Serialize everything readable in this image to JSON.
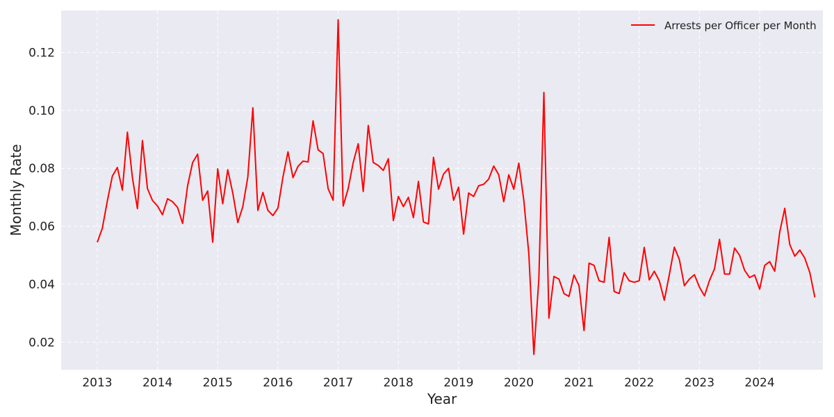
{
  "colors": {
    "line": "#ff0000",
    "plot_background": "#eaeaf2",
    "grid": "#ffffff"
  },
  "chart_data": {
    "type": "line",
    "title": "",
    "xlabel": "Year",
    "ylabel": "Monthly Rate",
    "xlim": [
      2012.4,
      2025.05
    ],
    "ylim": [
      0.0105,
      0.1345
    ],
    "xticks": [
      2013,
      2014,
      2015,
      2016,
      2017,
      2018,
      2019,
      2020,
      2021,
      2022,
      2023,
      2024
    ],
    "xtick_labels": [
      "2013",
      "2014",
      "2015",
      "2016",
      "2017",
      "2018",
      "2019",
      "2020",
      "2021",
      "2022",
      "2023",
      "2024"
    ],
    "yticks": [
      0.02,
      0.04,
      0.06,
      0.08,
      0.1,
      0.12
    ],
    "ytick_labels": [
      "0.02",
      "0.04",
      "0.06",
      "0.08",
      "0.10",
      "0.12"
    ],
    "grid": true,
    "legend_position": "top-right",
    "series": [
      {
        "name": "Arrests per Officer per Month",
        "color": "#ff0000",
        "x_start": 2013,
        "x_step_months": 1,
        "x_note": "monthly points from 2013-01 to 2024-12",
        "values": [
          0.0545,
          0.0593,
          0.0687,
          0.0773,
          0.0803,
          0.0725,
          0.0925,
          0.0768,
          0.0661,
          0.0896,
          0.073,
          0.0689,
          0.067,
          0.064,
          0.0695,
          0.0685,
          0.0665,
          0.061,
          0.074,
          0.082,
          0.0849,
          0.069,
          0.0722,
          0.0545,
          0.0798,
          0.0678,
          0.0795,
          0.0715,
          0.0613,
          0.0668,
          0.077,
          0.1009,
          0.0655,
          0.0717,
          0.0655,
          0.0637,
          0.0663,
          0.077,
          0.0857,
          0.0768,
          0.0807,
          0.0825,
          0.0822,
          0.0964,
          0.0864,
          0.0851,
          0.073,
          0.069,
          0.1313,
          0.067,
          0.073,
          0.082,
          0.0885,
          0.072,
          0.0948,
          0.082,
          0.081,
          0.0793,
          0.0833,
          0.062,
          0.0703,
          0.0668,
          0.07,
          0.063,
          0.0755,
          0.0615,
          0.0608,
          0.0838,
          0.0728,
          0.078,
          0.08,
          0.069,
          0.0735,
          0.0573,
          0.0715,
          0.0703,
          0.074,
          0.0745,
          0.0763,
          0.0808,
          0.0778,
          0.0685,
          0.0778,
          0.0728,
          0.0818,
          0.069,
          0.0505,
          0.0158,
          0.042,
          0.1062,
          0.0283,
          0.0427,
          0.0418,
          0.0368,
          0.0358,
          0.0432,
          0.0395,
          0.024,
          0.0473,
          0.0465,
          0.0412,
          0.0407,
          0.0562,
          0.0375,
          0.0368,
          0.044,
          0.0412,
          0.0407,
          0.0412,
          0.0527,
          0.0415,
          0.0445,
          0.0412,
          0.0345,
          0.0433,
          0.0528,
          0.0485,
          0.0395,
          0.0418,
          0.0433,
          0.039,
          0.036,
          0.0413,
          0.0453,
          0.0555,
          0.0435,
          0.0435,
          0.0525,
          0.05,
          0.0448,
          0.0423,
          0.0432,
          0.0383,
          0.0465,
          0.0478,
          0.0445,
          0.058,
          0.0662,
          0.0537,
          0.0497,
          0.0518,
          0.049,
          0.044,
          0.0355
        ]
      }
    ]
  }
}
